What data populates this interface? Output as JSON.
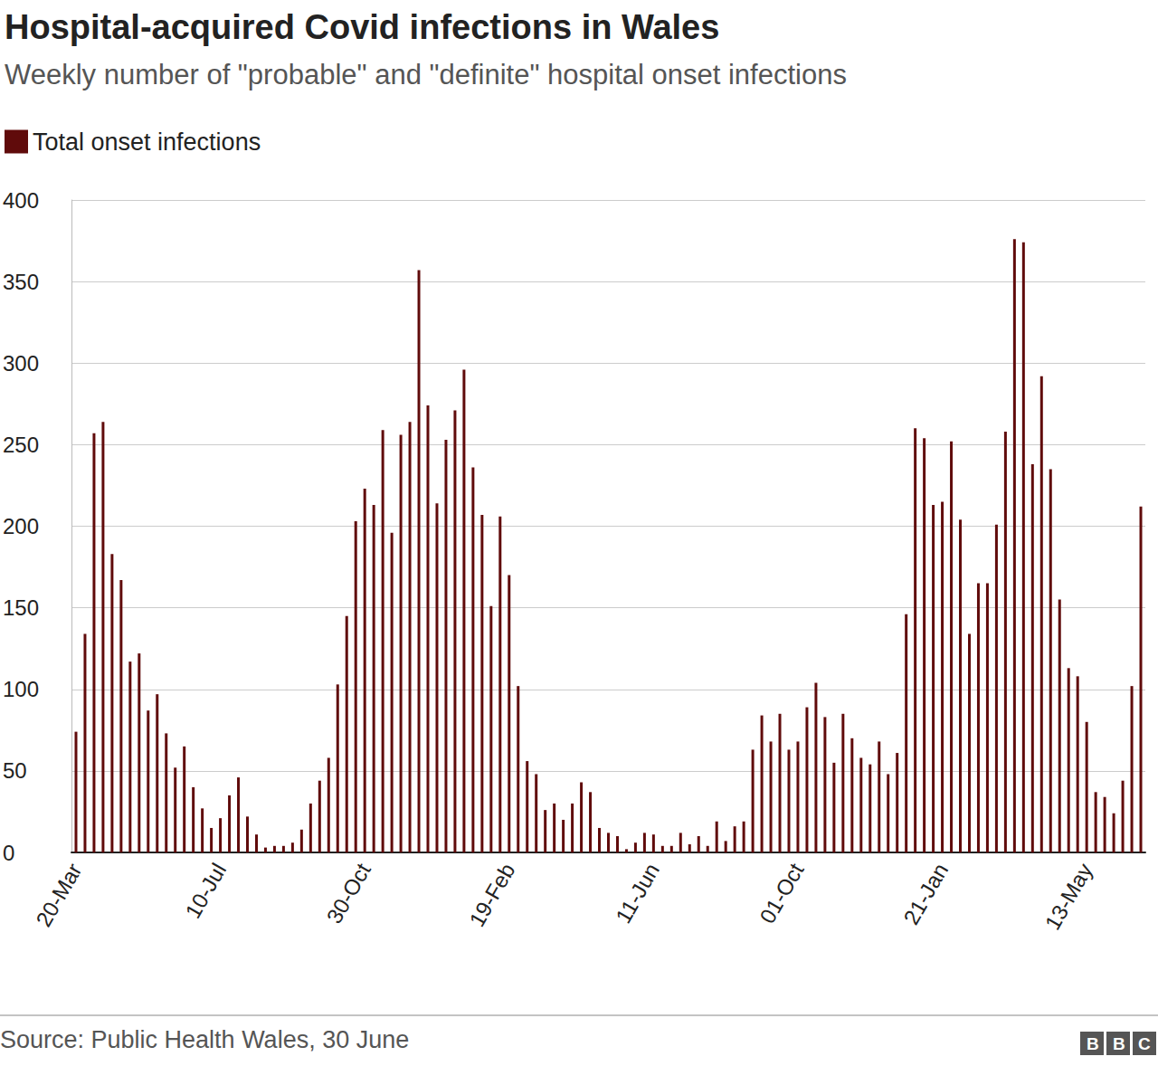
{
  "chart_data": {
    "type": "bar",
    "title": "Hospital-acquired Covid infections in Wales",
    "subtitle": "Weekly number of \"probable\" and \"definite\" hospital onset infections",
    "source": "Source: Public Health Wales, 30 June",
    "logo": "BBC",
    "categories": [
      "20-Mar",
      null,
      null,
      null,
      null,
      null,
      null,
      null,
      null,
      null,
      null,
      null,
      null,
      null,
      null,
      null,
      "10-Jul",
      null,
      null,
      null,
      null,
      null,
      null,
      null,
      null,
      null,
      null,
      null,
      null,
      null,
      null,
      null,
      "30-Oct",
      null,
      null,
      null,
      null,
      null,
      null,
      null,
      null,
      null,
      null,
      null,
      null,
      null,
      null,
      null,
      "19-Feb",
      null,
      null,
      null,
      null,
      null,
      null,
      null,
      null,
      null,
      null,
      null,
      null,
      null,
      null,
      null,
      "11-Jun",
      null,
      null,
      null,
      null,
      null,
      null,
      null,
      null,
      null,
      null,
      null,
      null,
      null,
      null,
      null,
      "01-Oct",
      null,
      null,
      null,
      null,
      null,
      null,
      null,
      null,
      null,
      null,
      null,
      null,
      null,
      null,
      null,
      "21-Jan",
      null,
      null,
      null,
      null,
      null,
      null,
      null,
      null,
      null,
      null,
      null,
      null,
      null,
      null,
      null,
      "13-May",
      null,
      null,
      null,
      null,
      null,
      null
    ],
    "series": [
      {
        "name": "Total onset infections",
        "color": "#600b0b",
        "values": [
          74,
          134,
          257,
          264,
          183,
          167,
          117,
          122,
          87,
          97,
          73,
          52,
          65,
          40,
          27,
          15,
          21,
          35,
          46,
          22,
          11,
          3,
          4,
          4,
          6,
          14,
          30,
          44,
          58,
          103,
          145,
          203,
          223,
          213,
          259,
          196,
          256,
          264,
          357,
          274,
          214,
          253,
          271,
          296,
          236,
          207,
          151,
          206,
          170,
          102,
          56,
          48,
          26,
          30,
          20,
          30,
          43,
          37,
          15,
          12,
          10,
          2,
          6,
          12,
          11,
          4,
          4,
          12,
          5,
          10,
          4,
          19,
          7,
          16,
          19,
          63,
          84,
          68,
          85,
          63,
          68,
          89,
          104,
          83,
          55,
          85,
          70,
          58,
          54,
          68,
          48,
          61,
          146,
          260,
          254,
          213,
          215,
          252,
          204,
          134,
          165,
          165,
          201,
          258,
          376,
          374,
          238,
          292,
          235,
          155,
          113,
          108,
          80,
          37,
          34,
          24,
          44,
          102,
          212
        ]
      }
    ],
    "ylim": [
      0,
      400
    ],
    "yticks": [
      0,
      50,
      100,
      150,
      200,
      250,
      300,
      350,
      400
    ],
    "grid": true,
    "legend": "top-left"
  }
}
